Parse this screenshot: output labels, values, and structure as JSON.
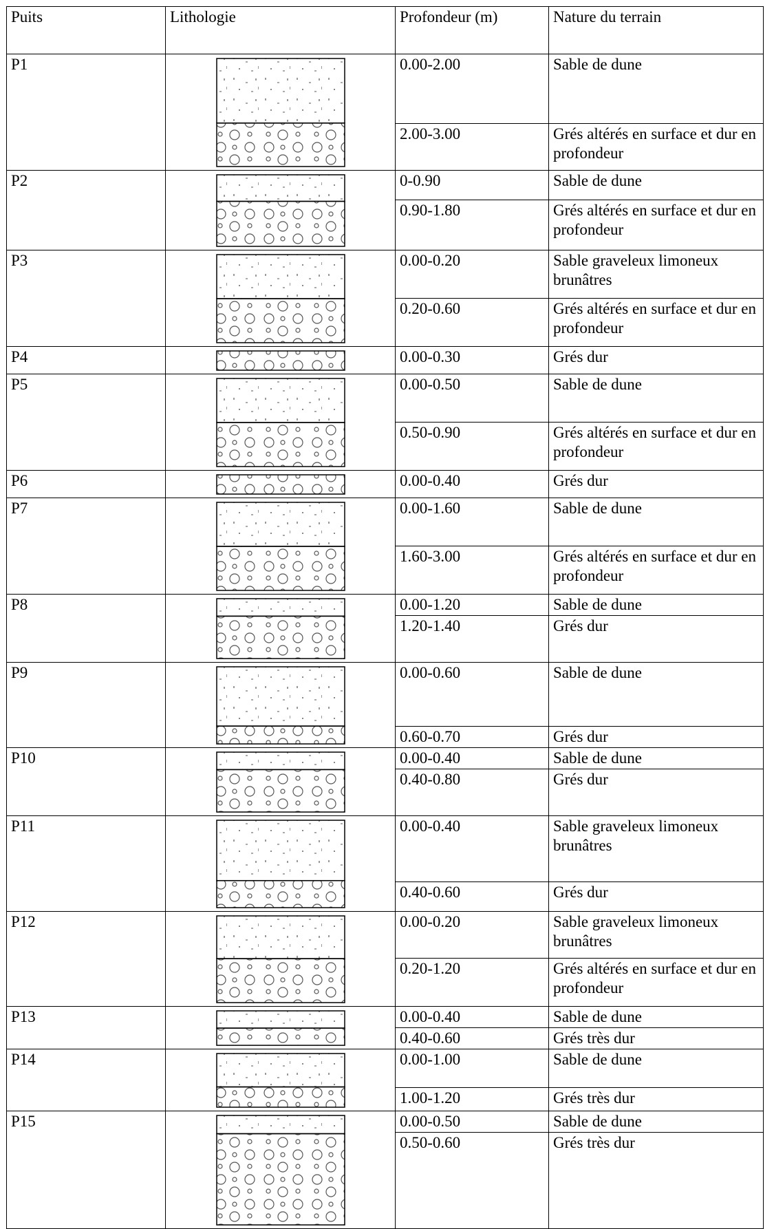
{
  "table": {
    "header": [
      "Puits",
      "Lithologie",
      "Profondeur (m)",
      "Nature du terrain"
    ],
    "rows": [
      {
        "well": "P1",
        "layers": [
          {
            "depth": "0.00-2.00",
            "nature": "Sable de dune"
          },
          {
            "depth": "2.00-3.00",
            "nature": "Grés altérés en surface et dur en profondeur"
          }
        ]
      },
      {
        "well": "P2",
        "layers": [
          {
            "depth": "0-0.90",
            "nature": "Sable de dune"
          },
          {
            "depth": "0.90-1.80",
            "nature": "Grés altérés en surface et dur en profondeur"
          }
        ]
      },
      {
        "well": "P3",
        "layers": [
          {
            "depth": "0.00-0.20",
            "nature": "Sable graveleux limoneux brunâtres"
          },
          {
            "depth": "0.20-0.60",
            "nature": "Grés altérés en surface et dur en profondeur"
          }
        ]
      },
      {
        "well": "P4",
        "layers": [
          {
            "depth": "0.00-0.30",
            "nature": "Grés dur"
          }
        ]
      },
      {
        "well": "P5",
        "layers": [
          {
            "depth": "0.00-0.50",
            "nature": "Sable de dune"
          },
          {
            "depth": "0.50-0.90",
            "nature": "Grés altérés en surface et dur en profondeur"
          }
        ]
      },
      {
        "well": "P6",
        "layers": [
          {
            "depth": "0.00-0.40",
            "nature": "Grés dur"
          }
        ]
      },
      {
        "well": "P7",
        "layers": [
          {
            "depth": "0.00-1.60",
            "nature": "Sable de dune"
          },
          {
            "depth": "1.60-3.00",
            "nature": "Grés altérés en surface et dur en profondeur"
          }
        ]
      },
      {
        "well": "P8",
        "layers": [
          {
            "depth": "0.00-1.20",
            "nature": "Sable de dune"
          },
          {
            "depth": "1.20-1.40",
            "nature": "Grés dur"
          }
        ]
      },
      {
        "well": "P9",
        "layers": [
          {
            "depth": "0.00-0.60",
            "nature": "Sable de dune"
          },
          {
            "depth": "0.60-0.70",
            "nature": "Grés dur"
          }
        ]
      },
      {
        "well": "P10",
        "layers": [
          {
            "depth": "0.00-0.40",
            "nature": "Sable de dune"
          },
          {
            "depth": "0.40-0.80",
            "nature": "Grés dur"
          }
        ]
      },
      {
        "well": "P11",
        "layers": [
          {
            "depth": "0.00-0.40",
            "nature": "Sable graveleux limoneux brunâtres"
          },
          {
            "depth": "0.40-0.60",
            "nature": "Grés dur"
          }
        ]
      },
      {
        "well": "P12",
        "layers": [
          {
            "depth": "0.00-0.20",
            "nature": "Sable graveleux limoneux brunâtres"
          },
          {
            "depth": "0.20-1.20",
            "nature": "Grés altérés en surface et dur en profondeur"
          }
        ]
      },
      {
        "well": "P13",
        "layers": [
          {
            "depth": "0.00-0.40",
            "nature": "Sable de dune"
          },
          {
            "depth": "0.40-0.60",
            "nature": "Grés très dur"
          }
        ]
      },
      {
        "well": "P14",
        "layers": [
          {
            "depth": "0.00-1.00",
            "nature": "Sable de dune"
          },
          {
            "depth": "1.00-1.20",
            "nature": "Grés très dur"
          }
        ]
      },
      {
        "well": "P15",
        "layers": [
          {
            "depth": "0.00-0.50",
            "nature": "Sable de dune"
          },
          {
            "depth": "0.50-0.60",
            "nature": "Grés très dur"
          }
        ]
      }
    ]
  }
}
